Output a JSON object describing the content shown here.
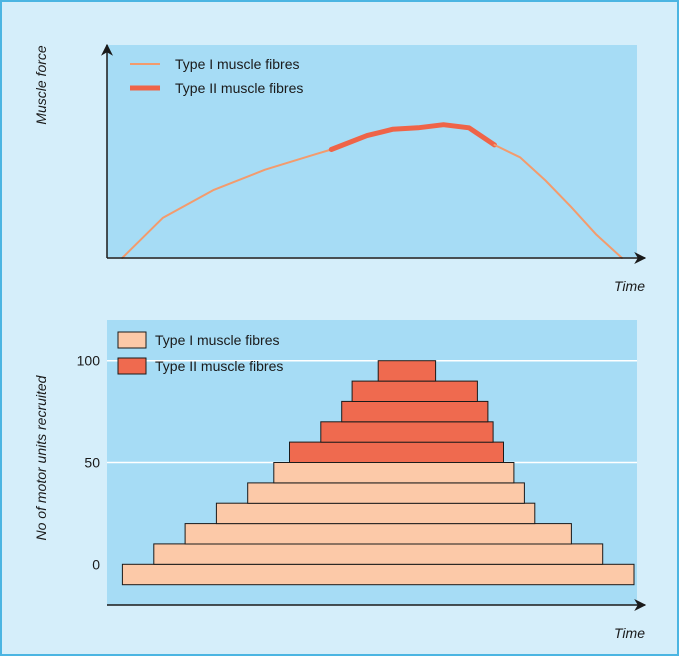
{
  "colors": {
    "frame_bg": "#d5eefa",
    "frame_border": "#4bb5e2",
    "plot_bg": "#a6dcf5",
    "type1": "#f39b6d",
    "type2": "#ef6448",
    "type1_fill": "#fcc9a8",
    "type2_fill": "#ef6a4f",
    "gridline": "#ffffff",
    "axis": "#1a1a1a"
  },
  "chart_data": [
    {
      "type": "line",
      "title": "",
      "ylabel": "Muscle force",
      "xlabel": "Time",
      "xlim": [
        0,
        100
      ],
      "ylim": [
        0,
        100
      ],
      "grid": false,
      "legend": {
        "placement": "top-left",
        "entries": [
          "Type I muscle fibres",
          "Type II muscle fibres"
        ]
      },
      "series": [
        {
          "name": "Type I muscle fibres",
          "x": [
            2,
            10,
            20,
            30,
            40,
            43
          ],
          "y": [
            0,
            26,
            44,
            57,
            67,
            70
          ]
        },
        {
          "name": "Type II muscle fibres",
          "x": [
            43,
            50,
            55,
            60,
            65,
            70,
            75
          ],
          "y": [
            70,
            79,
            83,
            84,
            86,
            84,
            73
          ]
        },
        {
          "name": "Type I muscle fibres",
          "x": [
            75,
            80,
            85,
            90,
            95,
            100
          ],
          "y": [
            73,
            65,
            50,
            33,
            15,
            0
          ]
        }
      ]
    },
    {
      "type": "bar",
      "orientation": "horizontal-stacked-rows",
      "ylabel": "No of motor units recruited",
      "xlabel": "Time",
      "yticks": [
        0,
        50,
        100
      ],
      "ylim": [
        -10,
        130
      ],
      "xlim": [
        0,
        100
      ],
      "grid": true,
      "legend": {
        "placement": "top-left",
        "entries": [
          "Type I muscle fibres",
          "Type II muscle fibres"
        ]
      },
      "bars": [
        {
          "series": "Type I muscle fibres",
          "level": 0,
          "start": 2,
          "end": 100
        },
        {
          "series": "Type I muscle fibres",
          "level": 10,
          "start": 8,
          "end": 94
        },
        {
          "series": "Type I muscle fibres",
          "level": 20,
          "start": 14,
          "end": 88
        },
        {
          "series": "Type I muscle fibres",
          "level": 30,
          "start": 20,
          "end": 81
        },
        {
          "series": "Type I muscle fibres",
          "level": 40,
          "start": 26,
          "end": 79
        },
        {
          "series": "Type I muscle fibres",
          "level": 50,
          "start": 31,
          "end": 77
        },
        {
          "series": "Type II muscle fibres",
          "level": 60,
          "start": 34,
          "end": 75
        },
        {
          "series": "Type II muscle fibres",
          "level": 70,
          "start": 40,
          "end": 73
        },
        {
          "series": "Type II muscle fibres",
          "level": 80,
          "start": 44,
          "end": 72
        },
        {
          "series": "Type II muscle fibres",
          "level": 90,
          "start": 46,
          "end": 70
        },
        {
          "series": "Type II muscle fibres",
          "level": 100,
          "start": 51,
          "end": 62
        }
      ]
    }
  ]
}
